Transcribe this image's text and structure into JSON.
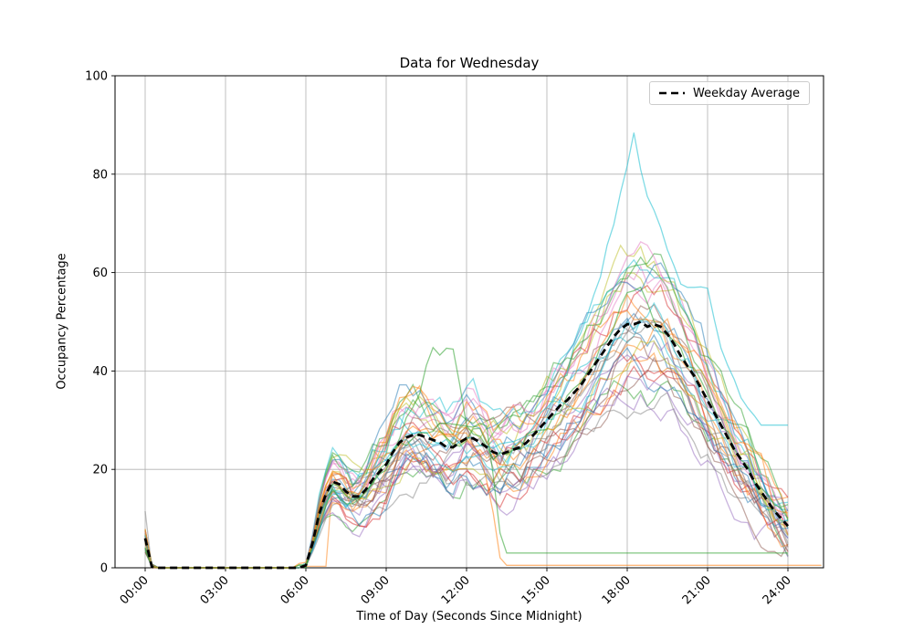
{
  "chart_data": {
    "type": "line",
    "title": "Data for Wednesday",
    "xlabel": "Time of Day (Seconds Since Midnight)",
    "ylabel": "Occupancy Percentage",
    "ylim": [
      0,
      100
    ],
    "grid": true,
    "x_ticks": [
      {
        "minutes": 0,
        "label": "00:00"
      },
      {
        "minutes": 180,
        "label": "03:00"
      },
      {
        "minutes": 360,
        "label": "06:00"
      },
      {
        "minutes": 540,
        "label": "09:00"
      },
      {
        "minutes": 720,
        "label": "12:00"
      },
      {
        "minutes": 900,
        "label": "15:00"
      },
      {
        "minutes": 1080,
        "label": "18:00"
      },
      {
        "minutes": 1260,
        "label": "21:00"
      },
      {
        "minutes": 1440,
        "label": "24:00"
      }
    ],
    "y_ticks": [
      "0",
      "20",
      "40",
      "60",
      "80",
      "100"
    ],
    "legend": {
      "label": "Weekday Average",
      "position": "upper right"
    },
    "colors": {
      "grid": "#b0b0b0",
      "spine": "#000000",
      "average": "#000000",
      "cycle": [
        "#1f77b4",
        "#ff7f0e",
        "#2ca02c",
        "#d62728",
        "#9467bd",
        "#8c564b",
        "#e377c2",
        "#7f7f7f",
        "#bcbd22",
        "#17becf"
      ]
    },
    "average_series": {
      "name": "Weekday Average",
      "line_style": "dashed",
      "step_minutes": 15,
      "start_minute": 0,
      "values": [
        6,
        0.2,
        0,
        0,
        0,
        0,
        0,
        0,
        0,
        0,
        0,
        0,
        0,
        0,
        0,
        0,
        0,
        0,
        0,
        0,
        0,
        0,
        0,
        0,
        0.5,
        5,
        11,
        15,
        17.5,
        17,
        15.5,
        14.5,
        14.5,
        16,
        18,
        19.5,
        21,
        23.5,
        25.5,
        26.5,
        27,
        27,
        26.5,
        26,
        25.5,
        24.5,
        24.5,
        25.5,
        26.3,
        26.3,
        25.5,
        24.5,
        23.5,
        23,
        23.5,
        24,
        24.5,
        25.5,
        27,
        28.5,
        30,
        31.5,
        33,
        34,
        35.5,
        37,
        39,
        41,
        43,
        45,
        47,
        48.5,
        49.5,
        49.5,
        50,
        49,
        49.5,
        49,
        47.5,
        45.5,
        43,
        41,
        39,
        36.5,
        34,
        31.5,
        29,
        26.5,
        24,
        22,
        20,
        17.5,
        15.5,
        13.5,
        11.5,
        10,
        8.5
      ]
    },
    "ensemble": {
      "count": 32,
      "seed": 11,
      "alpha": 0.5,
      "line_width": 1.3,
      "gain_min": 0.72,
      "gain_span": 0.62,
      "noise_step": 5.5,
      "noise_decay": 0.8,
      "rise_minute": 360,
      "gray_spike_index": 7,
      "gray_spike_value": 11.5,
      "delayed_index": 1,
      "delayed_until_minute": 415
    },
    "special_series": [
      {
        "name": "cyan-outlier-peak-88",
        "color": "#17becf",
        "opacity": 0.55,
        "width": 1.3,
        "noise": 1,
        "keypoints": [
          [
            0,
            5
          ],
          [
            15,
            0.5
          ],
          [
            30,
            0
          ],
          [
            345,
            0
          ],
          [
            360,
            0.4
          ],
          [
            390,
            8
          ],
          [
            420,
            16
          ],
          [
            450,
            13
          ],
          [
            480,
            15
          ],
          [
            510,
            19
          ],
          [
            540,
            22
          ],
          [
            570,
            26
          ],
          [
            600,
            28
          ],
          [
            630,
            27
          ],
          [
            660,
            26
          ],
          [
            690,
            25
          ],
          [
            720,
            27
          ],
          [
            750,
            25
          ],
          [
            780,
            24
          ],
          [
            810,
            25
          ],
          [
            840,
            26
          ],
          [
            870,
            29
          ],
          [
            900,
            32
          ],
          [
            930,
            37
          ],
          [
            960,
            44
          ],
          [
            990,
            52
          ],
          [
            1020,
            60
          ],
          [
            1050,
            70
          ],
          [
            1080,
            82
          ],
          [
            1095,
            88
          ],
          [
            1110,
            80
          ],
          [
            1125,
            76
          ],
          [
            1140,
            72
          ],
          [
            1170,
            65
          ],
          [
            1200,
            58
          ],
          [
            1215,
            57
          ],
          [
            1230,
            57
          ],
          [
            1245,
            57
          ],
          [
            1260,
            57.5
          ],
          [
            1275,
            50
          ],
          [
            1290,
            45
          ],
          [
            1305,
            41
          ],
          [
            1320,
            38
          ],
          [
            1335,
            35
          ],
          [
            1350,
            33
          ],
          [
            1365,
            31
          ],
          [
            1380,
            29
          ],
          [
            1440,
            29
          ]
        ]
      },
      {
        "name": "green-midday-peak-45",
        "color": "#2ca02c",
        "opacity": 0.55,
        "width": 1.3,
        "noise": 1.2,
        "keypoints": [
          [
            0,
            4
          ],
          [
            15,
            0.3
          ],
          [
            30,
            0
          ],
          [
            345,
            0
          ],
          [
            360,
            0.5
          ],
          [
            390,
            9
          ],
          [
            420,
            15
          ],
          [
            450,
            13
          ],
          [
            480,
            13
          ],
          [
            540,
            20
          ],
          [
            570,
            27
          ],
          [
            600,
            33
          ],
          [
            630,
            40
          ],
          [
            645,
            45
          ],
          [
            660,
            43
          ],
          [
            675,
            45
          ],
          [
            690,
            44
          ],
          [
            705,
            36
          ],
          [
            720,
            30
          ],
          [
            750,
            26
          ],
          [
            780,
            22
          ],
          [
            810,
            23
          ],
          [
            840,
            25
          ],
          [
            900,
            29
          ],
          [
            960,
            36
          ],
          [
            1020,
            44
          ],
          [
            1080,
            55
          ],
          [
            1110,
            58
          ],
          [
            1140,
            50
          ],
          [
            1200,
            44
          ],
          [
            1260,
            35
          ],
          [
            1320,
            24
          ],
          [
            1380,
            16
          ],
          [
            1440,
            10
          ]
        ]
      },
      {
        "name": "green-flatline-3",
        "color": "#2ca02c",
        "opacity": 0.55,
        "width": 1.3,
        "noise": 1,
        "keypoints": [
          [
            0,
            3.5
          ],
          [
            15,
            0.3
          ],
          [
            30,
            0
          ],
          [
            345,
            0
          ],
          [
            360,
            0.5
          ],
          [
            390,
            10
          ],
          [
            420,
            18
          ],
          [
            450,
            15
          ],
          [
            480,
            14
          ],
          [
            540,
            22
          ],
          [
            600,
            27
          ],
          [
            660,
            29
          ],
          [
            720,
            28
          ],
          [
            750,
            30
          ],
          [
            765,
            28
          ],
          [
            780,
            18
          ],
          [
            795,
            8
          ],
          [
            810,
            3
          ],
          [
            1440,
            3
          ]
        ]
      },
      {
        "name": "orange-dropout-zero",
        "color": "#ff7f0e",
        "opacity": 0.55,
        "width": 1.3,
        "noise": 1,
        "keypoints": [
          [
            0,
            5
          ],
          [
            15,
            0.4
          ],
          [
            30,
            0
          ],
          [
            345,
            0
          ],
          [
            360,
            0.5
          ],
          [
            390,
            11
          ],
          [
            420,
            19
          ],
          [
            450,
            16
          ],
          [
            480,
            15
          ],
          [
            540,
            23
          ],
          [
            600,
            28
          ],
          [
            660,
            27
          ],
          [
            720,
            26
          ],
          [
            750,
            24
          ],
          [
            780,
            12
          ],
          [
            795,
            2
          ],
          [
            810,
            0.5
          ],
          [
            1520,
            0.5
          ]
        ]
      }
    ]
  }
}
